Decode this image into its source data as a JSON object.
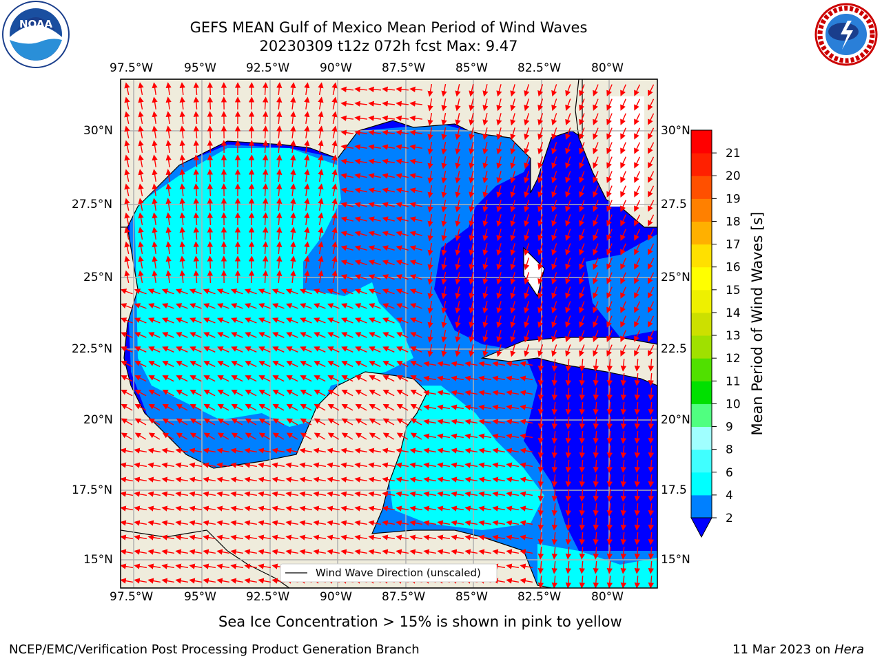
{
  "header": {
    "title": "GEFS MEAN Gulf of Mexico Mean Period of Wind Waves",
    "subtitle": "20230309 t12z 072h fcst   Max: 9.47"
  },
  "map": {
    "lon_ticks": [
      "97.5°W",
      "95°W",
      "92.5°W",
      "90°W",
      "87.5°W",
      "85°W",
      "82.5°W",
      "80°W"
    ],
    "lat_ticks_left": [
      "30°N",
      "27.5°N",
      "25°N",
      "22.5°N",
      "20°N",
      "17.5°N",
      "15°N"
    ],
    "lat_ticks_right": [
      "30°N",
      "27.5",
      "25°N",
      "22.5",
      "20°N",
      "17.5",
      "15°N"
    ],
    "legend_label": "Wind Wave Direction (unscaled)",
    "colors": {
      "land": "#efecdc",
      "grid": "#b0b0b0",
      "arrow": "#ff0000"
    }
  },
  "colorbar": {
    "label": "Mean Period of Wind Waves [s]",
    "ticks": [
      "2",
      "4",
      "6",
      "8",
      "9",
      "10",
      "11",
      "12",
      "13",
      "14",
      "15",
      "16",
      "17",
      "18",
      "19",
      "20",
      "21"
    ],
    "colors": [
      "#0080ff",
      "#00ffff",
      "#40ffff",
      "#a0ffff",
      "#50ff80",
      "#00e000",
      "#50e000",
      "#a0e000",
      "#cce000",
      "#eef000",
      "#ffff00",
      "#ffe000",
      "#ffb000",
      "#ff8000",
      "#ff5000",
      "#ff2000",
      "#ff0000"
    ],
    "under_color": "#0000ff"
  },
  "footer": {
    "note": "Sea Ice Concentration > 15% is shown in pink to yellow",
    "credit": "NCEP/EMC/Verification Post Processing Product Generation Branch",
    "date_prefix": "11 Mar 2023 on ",
    "host": "Hera"
  },
  "logos": {
    "noaa_text": "NOAA",
    "nws_text": "NATIONAL WEATHER SERVICE"
  }
}
